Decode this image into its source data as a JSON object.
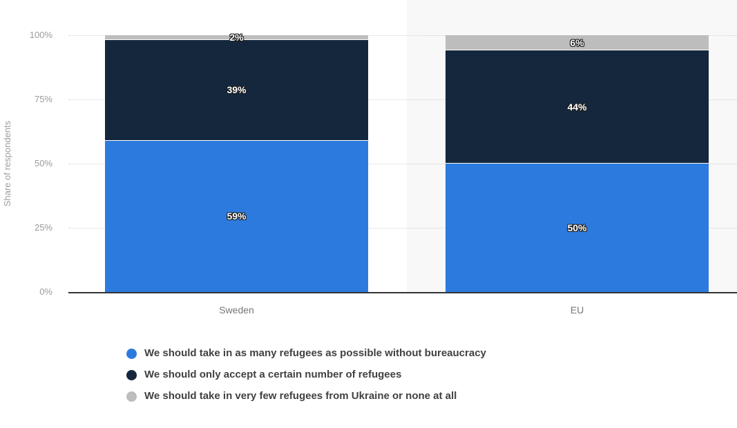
{
  "chart_data": {
    "type": "bar",
    "stacked": true,
    "title": "",
    "categories": [
      "Sweden",
      "EU"
    ],
    "series": [
      {
        "name": "We should take in as many refugees as possible without bureaucracy",
        "color": "#2c7ade",
        "values": [
          59,
          50
        ]
      },
      {
        "name": "We should only accept a certain number of refugees",
        "color": "#15273c",
        "values": [
          39,
          44
        ]
      },
      {
        "name": "We should take in very few refugees from Ukraine or none at all",
        "color": "#bdbdbd",
        "values": [
          2,
          6
        ]
      }
    ],
    "data_label_suffix": "%",
    "y_axis": {
      "label": "Share of respondents",
      "ticks": [
        {
          "value": 0,
          "label": "0%"
        },
        {
          "value": 25,
          "label": "25%"
        },
        {
          "value": 50,
          "label": "50%"
        },
        {
          "value": 75,
          "label": "75%"
        },
        {
          "value": 100,
          "label": "100%"
        }
      ],
      "min": 0,
      "max": 100
    },
    "grid": "horizontal-dotted",
    "legend_position": "bottom-left",
    "highlighted_category": "EU"
  }
}
